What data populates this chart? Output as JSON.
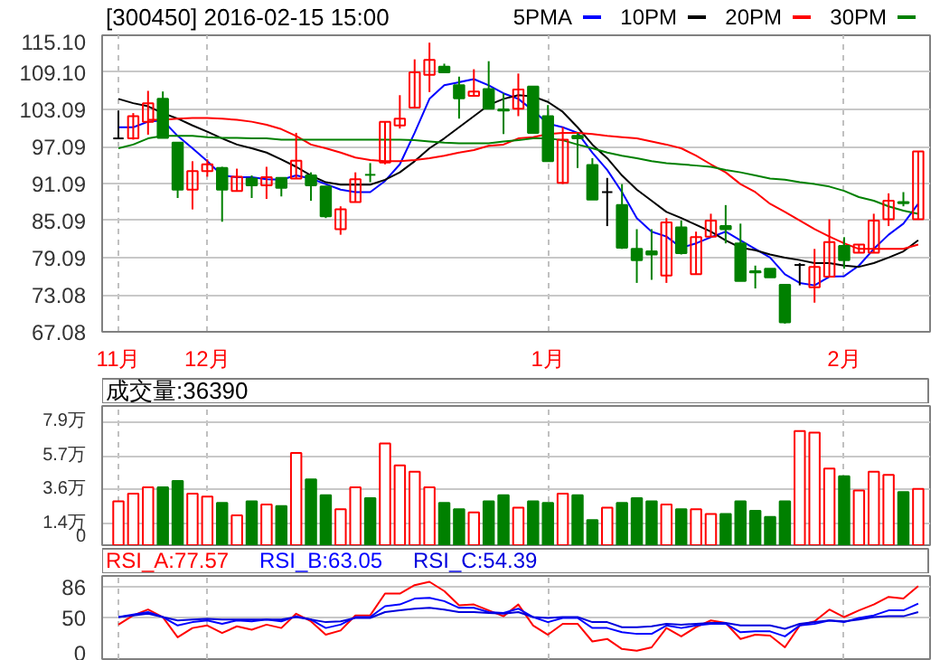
{
  "chart_data": [
    {
      "type": "candlestick",
      "title": "[300450] 2016-02-15 15:00",
      "legend": "top right",
      "grid": true,
      "categories": [
        "11月",
        null,
        null,
        null,
        null,
        null,
        "12月",
        null,
        null,
        null,
        null,
        null,
        null,
        null,
        null,
        null,
        null,
        null,
        null,
        null,
        null,
        null,
        null,
        null,
        null,
        null,
        null,
        null,
        null,
        "1月",
        null,
        null,
        null,
        null,
        null,
        null,
        null,
        null,
        null,
        null,
        null,
        null,
        null,
        null,
        null,
        null,
        null,
        null,
        null,
        "2月",
        null,
        null,
        null,
        null,
        null
      ],
      "ylim": [
        67.08,
        115.1
      ],
      "yticks": [
        {
          "value": 67.08,
          "label": "67.08"
        },
        {
          "value": 73.08,
          "label": "73.08"
        },
        {
          "value": 79.09,
          "label": "79.09"
        },
        {
          "value": 85.09,
          "label": "85.09"
        },
        {
          "value": 91.09,
          "label": "91.09"
        },
        {
          "value": 97.09,
          "label": "97.09"
        },
        {
          "value": 103.09,
          "label": "103.09"
        },
        {
          "value": 109.1,
          "label": "109.10"
        },
        {
          "value": 115.1,
          "label": "115.10"
        }
      ],
      "ohlc": [
        [
          98.4,
          102.9,
          98.4,
          98.4
        ],
        [
          98.4,
          102.5,
          98.2,
          102.0
        ],
        [
          101.1,
          106.1,
          99.0,
          104.1
        ],
        [
          104.8,
          106.0,
          98.5,
          98.5
        ],
        [
          97.7,
          97.7,
          88.75,
          90.1
        ],
        [
          90.1,
          94.7,
          86.9,
          93.1
        ],
        [
          93.1,
          95.0,
          92.2,
          94.2
        ],
        [
          93.6,
          93.8,
          84.9,
          90.1
        ],
        [
          89.9,
          93.5,
          89.9,
          92.2
        ],
        [
          91.9,
          92.4,
          88.75,
          90.8
        ],
        [
          90.8,
          93.8,
          88.6,
          92.1
        ],
        [
          92.0,
          92.0,
          89.0,
          90.4
        ],
        [
          91.9,
          99.3,
          91.9,
          94.8
        ],
        [
          92.4,
          92.9,
          88.3,
          90.8
        ],
        [
          90.6,
          90.6,
          85.5,
          85.8
        ],
        [
          83.7,
          87.4,
          82.8,
          86.9
        ],
        [
          88.1,
          92.9,
          88.1,
          91.8
        ],
        [
          92.5,
          94.4,
          91.3,
          92.4
        ],
        [
          94.5,
          101.1,
          94.2,
          101.1
        ],
        [
          100.5,
          105.4,
          100.0,
          101.6
        ],
        [
          103.4,
          111.2,
          103.4,
          109.1
        ],
        [
          108.7,
          113.9,
          105.9,
          111.1
        ],
        [
          110.0,
          110.5,
          109.1,
          109.1
        ],
        [
          107.0,
          108.4,
          101.6,
          104.9
        ],
        [
          105.3,
          109.6,
          105.2,
          106.0
        ],
        [
          106.4,
          110.9,
          103.2,
          103.2
        ],
        [
          103.1,
          105.7,
          99.1,
          102.9
        ],
        [
          103.2,
          108.9,
          102.0,
          106.3
        ],
        [
          106.8,
          106.8,
          99.3,
          99.3
        ],
        [
          102.0,
          103.8,
          94.7,
          94.7
        ],
        [
          91.2,
          100.2,
          91.0,
          98.2
        ],
        [
          98.8,
          99.3,
          93.6,
          98.4
        ],
        [
          94.1,
          95.2,
          88.5,
          88.5
        ],
        [
          89.7,
          92.0,
          84.2,
          89.7
        ],
        [
          87.6,
          91.0,
          80.5,
          80.7
        ],
        [
          80.5,
          83.7,
          75.0,
          78.7
        ],
        [
          80.1,
          83.7,
          75.5,
          79.6
        ],
        [
          76.2,
          85.5,
          75.0,
          84.8
        ],
        [
          84.0,
          85.1,
          79.6,
          79.8
        ],
        [
          76.4,
          83.3,
          76.4,
          82.4
        ],
        [
          82.5,
          86.2,
          82.5,
          85.1
        ],
        [
          84.2,
          87.6,
          81.4,
          83.7
        ],
        [
          81.4,
          84.6,
          75.3,
          75.3
        ],
        [
          76.9,
          77.8,
          74.1,
          76.7
        ],
        [
          77.3,
          77.3,
          75.9,
          75.9
        ],
        [
          74.7,
          74.7,
          68.4,
          68.6
        ],
        [
          77.9,
          78.2,
          74.6,
          77.9
        ],
        [
          74.3,
          80.5,
          71.8,
          77.6
        ],
        [
          76.0,
          85.3,
          76.0,
          81.6
        ],
        [
          81.0,
          82.4,
          77.3,
          78.7
        ],
        [
          79.9,
          81.2,
          79.9,
          81.2
        ],
        [
          79.9,
          86.2,
          79.9,
          85.1
        ],
        [
          85.3,
          89.5,
          84.2,
          88.3
        ],
        [
          88.1,
          89.7,
          87.4,
          87.9
        ],
        [
          85.3,
          96.3,
          85.3,
          96.3
        ]
      ],
      "colors": [
        "#000000",
        "#ff0000",
        "#ff0000",
        "#008000",
        "#008000",
        "#ff0000",
        "#ff0000",
        "#008000",
        "#ff0000",
        "#008000",
        "#ff0000",
        "#008000",
        "#ff0000",
        "#008000",
        "#008000",
        "#ff0000",
        "#ff0000",
        "#008000",
        "#ff0000",
        "#ff0000",
        "#ff0000",
        "#ff0000",
        "#008000",
        "#008000",
        "#ff0000",
        "#008000",
        "#008000",
        "#ff0000",
        "#008000",
        "#008000",
        "#ff0000",
        "#008000",
        "#008000",
        "#000000",
        "#008000",
        "#008000",
        "#008000",
        "#ff0000",
        "#008000",
        "#ff0000",
        "#ff0000",
        "#008000",
        "#008000",
        "#008000",
        "#008000",
        "#008000",
        "#000000",
        "#ff0000",
        "#ff0000",
        "#008000",
        "#ff0000",
        "#ff0000",
        "#ff0000",
        "#008000",
        "#ff0000"
      ],
      "series": [
        {
          "type": "line",
          "name": "5PMA",
          "color": "#0000ff",
          "values": [
            100.2,
            100.2,
            101.1,
            101.3,
            98.8,
            96.8,
            94.7,
            92.4,
            92.1,
            92.1,
            91.8,
            91.7,
            92.4,
            91.9,
            91.0,
            90.1,
            89.7,
            89.7,
            91.5,
            94.2,
            99.3,
            104.8,
            107.0,
            107.5,
            108.0,
            107.0,
            105.7,
            104.8,
            102.9,
            100.8,
            100.2,
            99.3,
            96.1,
            93.3,
            89.7,
            85.5,
            83.3,
            82.5,
            80.7,
            81.4,
            82.4,
            83.3,
            81.9,
            80.5,
            79.1,
            76.4,
            75.0,
            74.6,
            76.0,
            76.1,
            77.8,
            80.5,
            82.8,
            84.6,
            87.8
          ]
        },
        {
          "type": "line",
          "name": "10PM",
          "color": "#000000",
          "values": [
            104.8,
            104.1,
            103.6,
            102.5,
            101.6,
            100.5,
            99.5,
            98.4,
            97.4,
            96.8,
            96.1,
            95.0,
            93.8,
            92.4,
            91.3,
            90.9,
            90.9,
            90.9,
            91.7,
            92.9,
            94.7,
            96.8,
            98.4,
            100.2,
            102.0,
            103.8,
            104.8,
            105.4,
            105.2,
            104.3,
            102.7,
            100.2,
            97.4,
            95.2,
            92.4,
            90.1,
            88.3,
            86.5,
            85.5,
            84.4,
            83.3,
            81.9,
            80.7,
            80.3,
            79.6,
            79.1,
            78.7,
            78.2,
            78.2,
            77.8,
            77.6,
            78.2,
            79.1,
            80.1,
            81.9
          ]
        },
        {
          "type": "line",
          "name": "20PM",
          "color": "#ff0000",
          "values": [
            null,
            null,
            101.4,
            101.4,
            101.6,
            101.7,
            101.7,
            101.6,
            101.4,
            101.1,
            100.6,
            99.9,
            98.8,
            97.4,
            96.8,
            96.1,
            95.3,
            94.9,
            94.7,
            94.7,
            94.9,
            95.2,
            95.6,
            96.1,
            96.5,
            97.2,
            97.4,
            98.4,
            98.6,
            99.1,
            99.3,
            99.3,
            99.1,
            98.8,
            98.6,
            98.4,
            97.9,
            97.4,
            96.8,
            95.6,
            94.2,
            92.9,
            91.0,
            89.7,
            87.8,
            86.5,
            85.1,
            83.7,
            82.5,
            81.4,
            80.5,
            80.5,
            80.5,
            80.5,
            81.2
          ]
        },
        {
          "type": "line",
          "name": "30PM",
          "color": "#008000",
          "values": [
            96.8,
            97.4,
            98.4,
            98.8,
            98.8,
            98.8,
            98.6,
            98.5,
            98.5,
            98.4,
            98.4,
            98.2,
            98.2,
            98.2,
            98.2,
            98.2,
            98.2,
            98.2,
            98.2,
            98.2,
            98.1,
            97.9,
            97.7,
            97.6,
            97.6,
            97.6,
            97.9,
            98.1,
            98.4,
            98.4,
            98.1,
            97.4,
            96.8,
            96.1,
            95.6,
            95.2,
            94.7,
            94.4,
            94.2,
            94.0,
            93.8,
            93.3,
            92.9,
            92.4,
            91.9,
            91.7,
            91.3,
            91.0,
            90.6,
            89.9,
            88.9,
            88.3,
            87.4,
            86.7,
            86.2
          ]
        }
      ]
    },
    {
      "type": "bar",
      "title": "成交量:36390",
      "grid": true,
      "tick_labels": "y",
      "categories": [
        null,
        null,
        null,
        null,
        null,
        null,
        null,
        null,
        null,
        null,
        null,
        null,
        null,
        null,
        null,
        null,
        null,
        null,
        null,
        null,
        null,
        null,
        null,
        null,
        null,
        null,
        null,
        null,
        null,
        null,
        null,
        null,
        null,
        null,
        null,
        null,
        null,
        null,
        null,
        null,
        null,
        null,
        null,
        null,
        null,
        null,
        null,
        null,
        null,
        null,
        null,
        null,
        null,
        null,
        null
      ],
      "ylim": [
        0,
        8.9
      ],
      "yticks": [
        0,
        {
          "value": 1.4,
          "label": "1.4万"
        },
        {
          "value": 3.6,
          "label": "3.6万"
        },
        {
          "value": 5.7,
          "label": "5.7万"
        },
        {
          "value": 7.9,
          "label": "7.9万"
        }
      ],
      "values": [
        2.8,
        3.3,
        3.7,
        3.7,
        4.1,
        3.3,
        3.1,
        2.7,
        1.9,
        2.8,
        2.6,
        2.5,
        5.9,
        4.2,
        3.2,
        2.3,
        3.7,
        3.0,
        6.5,
        5.1,
        4.7,
        3.7,
        2.7,
        2.3,
        2.1,
        2.8,
        3.2,
        2.4,
        2.8,
        2.7,
        3.3,
        3.2,
        1.6,
        2.4,
        2.7,
        3.0,
        2.8,
        2.6,
        2.3,
        2.3,
        2.0,
        2.0,
        2.8,
        2.2,
        1.8,
        2.8,
        7.3,
        7.2,
        4.9,
        4.4,
        3.5,
        4.7,
        4.5,
        3.4,
        3.6
      ],
      "colors": [
        "#ff0000",
        "#ff0000",
        "#ff0000",
        "#008000",
        "#008000",
        "#ff0000",
        "#ff0000",
        "#008000",
        "#ff0000",
        "#008000",
        "#ff0000",
        "#008000",
        "#ff0000",
        "#008000",
        "#008000",
        "#ff0000",
        "#ff0000",
        "#008000",
        "#ff0000",
        "#ff0000",
        "#ff0000",
        "#ff0000",
        "#008000",
        "#008000",
        "#ff0000",
        "#008000",
        "#008000",
        "#ff0000",
        "#008000",
        "#008000",
        "#ff0000",
        "#008000",
        "#008000",
        "#ff0000",
        "#008000",
        "#008000",
        "#008000",
        "#ff0000",
        "#008000",
        "#ff0000",
        "#ff0000",
        "#008000",
        "#008000",
        "#008000",
        "#008000",
        "#008000",
        "#ff0000",
        "#ff0000",
        "#ff0000",
        "#008000",
        "#ff0000",
        "#ff0000",
        "#ff0000",
        "#008000",
        "#ff0000"
      ]
    },
    {
      "type": "line",
      "grid": true,
      "tick_labels": "y",
      "categories": [
        null,
        null,
        null,
        null,
        null,
        null,
        null,
        null,
        null,
        null,
        null,
        null,
        null,
        null,
        null,
        null,
        null,
        null,
        null,
        null,
        null,
        null,
        null,
        null,
        null,
        null,
        null,
        null,
        null,
        null,
        null,
        null,
        null,
        null,
        null,
        null,
        null,
        null,
        null,
        null,
        null,
        null,
        null,
        null,
        null,
        null,
        null,
        null,
        null,
        null,
        null,
        null,
        null,
        null,
        null
      ],
      "ylim": [
        0,
        99
      ],
      "yticks": [
        0,
        50,
        86
      ],
      "series": [
        {
          "name": "RSI_A:77.57",
          "color": "#ff0000",
          "values": [
            41,
            52,
            59,
            50,
            26,
            37,
            40,
            31,
            39,
            35,
            41,
            37,
            54,
            45,
            29,
            34,
            52,
            52,
            78,
            78,
            88,
            92,
            81,
            64,
            65,
            58,
            51,
            65,
            40,
            29,
            42,
            42,
            21,
            24,
            12,
            10,
            14,
            37,
            27,
            38,
            46,
            43,
            24,
            29,
            28,
            14,
            40,
            45,
            59,
            50,
            58,
            65,
            74,
            72,
            87
          ]
        },
        {
          "name": "RSI_B:63.05",
          "color": "#0000ff",
          "values": [
            50,
            53,
            56,
            50,
            40,
            44,
            46,
            42,
            46,
            45,
            47,
            45,
            51,
            47,
            37,
            41,
            50,
            50,
            63,
            65,
            72,
            73,
            69,
            61,
            61,
            56,
            55,
            60,
            50,
            44,
            49,
            49,
            37,
            37,
            32,
            30,
            30,
            40,
            37,
            40,
            42,
            42,
            32,
            33,
            33,
            27,
            40,
            42,
            46,
            44,
            49,
            52,
            58,
            58,
            66
          ]
        },
        {
          "name": "RSI_C:54.39",
          "color": "#0000dd",
          "values": [
            50,
            52,
            54,
            50,
            46,
            47,
            48,
            47,
            47,
            47,
            47,
            47,
            50,
            47,
            44,
            45,
            49,
            49,
            56,
            58,
            60,
            61,
            59,
            56,
            56,
            55,
            54,
            56,
            50,
            49,
            50,
            50,
            44,
            44,
            38,
            38,
            39,
            42,
            41,
            42,
            43,
            43,
            40,
            40,
            40,
            36,
            42,
            44,
            46,
            45,
            47,
            50,
            51,
            51,
            56
          ]
        }
      ]
    }
  ]
}
